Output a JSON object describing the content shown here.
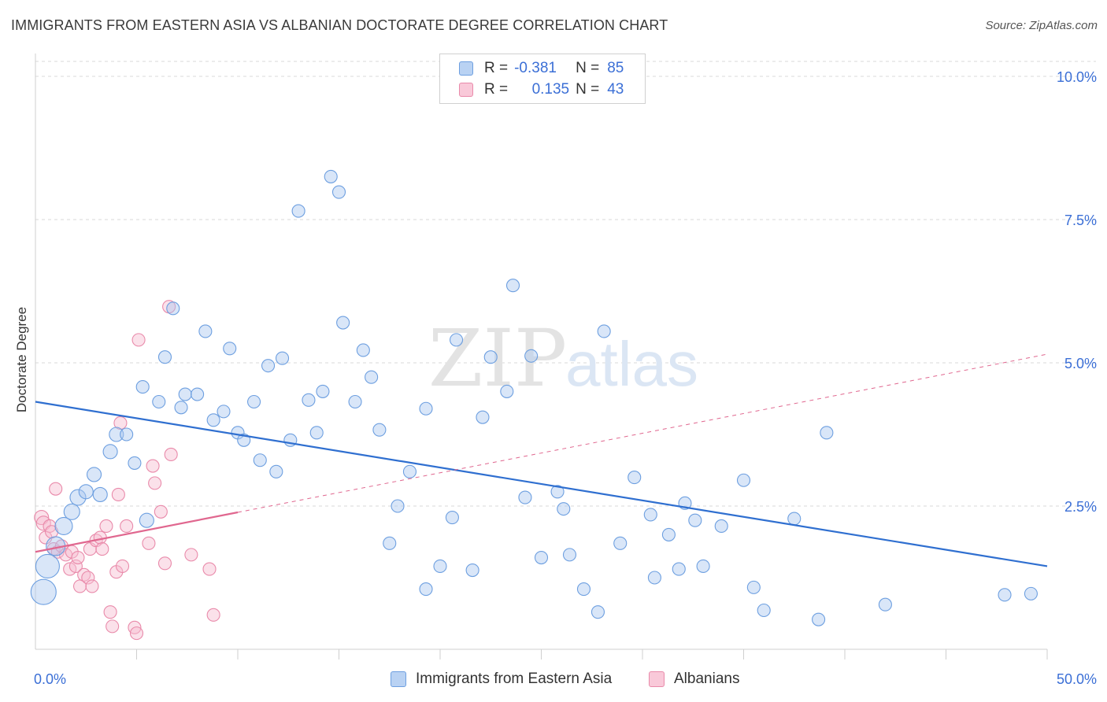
{
  "title": "IMMIGRANTS FROM EASTERN ASIA VS ALBANIAN DOCTORATE DEGREE CORRELATION CHART",
  "source": "Source: ZipAtlas.com",
  "watermark": {
    "zip": "ZIP",
    "atlas": "atlas"
  },
  "legend": {
    "r_label": "R =",
    "n_label": "N =",
    "rows": [
      {
        "r": "-0.381",
        "n": "85"
      },
      {
        "r": "0.135",
        "n": "43"
      }
    ]
  },
  "colors": {
    "blue_fill": "#aac8f0",
    "blue_stroke": "#6d9fe0",
    "blue_line": "#2f6fd0",
    "pink_fill": "#f7bcd0",
    "pink_stroke": "#e98aaa",
    "pink_line": "#e0678f",
    "tick_label": "#3b6fd6",
    "grid": "#d9d9d9"
  },
  "chart_data": {
    "type": "scatter",
    "title": "IMMIGRANTS FROM EASTERN ASIA VS ALBANIAN DOCTORATE DEGREE CORRELATION CHART",
    "xlabel": "",
    "ylabel": "Doctorate Degree",
    "xlim": [
      0,
      50
    ],
    "ylim": [
      0,
      10.5
    ],
    "x_tick_labels": [
      "0.0%",
      "50.0%"
    ],
    "y_ticks": [
      2.5,
      5.0,
      7.5,
      10.0
    ],
    "y_tick_labels": [
      "2.5%",
      "5.0%",
      "7.5%",
      "10.0%"
    ],
    "series": [
      {
        "name": "Immigrants from Eastern Asia",
        "r": -0.381,
        "n": 85,
        "trend": {
          "x": [
            0,
            50
          ],
          "y": [
            4.32,
            1.45
          ],
          "dashed_from": null
        },
        "points": [
          [
            0.4,
            1.0,
            16
          ],
          [
            0.6,
            1.45,
            15
          ],
          [
            1.0,
            1.8,
            12
          ],
          [
            1.4,
            2.15,
            11
          ],
          [
            1.8,
            2.4,
            10
          ],
          [
            2.1,
            2.65,
            10
          ],
          [
            2.5,
            2.75,
            9
          ],
          [
            2.9,
            3.05,
            9
          ],
          [
            3.2,
            2.7,
            9
          ],
          [
            3.7,
            3.45,
            9
          ],
          [
            4.0,
            3.75,
            9
          ],
          [
            4.5,
            3.75,
            8
          ],
          [
            4.9,
            3.25,
            8
          ],
          [
            5.3,
            4.58,
            8
          ],
          [
            5.5,
            2.25,
            9
          ],
          [
            6.1,
            4.32,
            8
          ],
          [
            6.4,
            5.1,
            8
          ],
          [
            6.8,
            5.95,
            8
          ],
          [
            7.2,
            4.22,
            8
          ],
          [
            7.4,
            4.45,
            8
          ],
          [
            8.0,
            4.45,
            8
          ],
          [
            8.4,
            5.55,
            8
          ],
          [
            8.8,
            4.0,
            8
          ],
          [
            9.3,
            4.15,
            8
          ],
          [
            9.6,
            5.25,
            8
          ],
          [
            10.0,
            3.78,
            8
          ],
          [
            10.3,
            3.65,
            8
          ],
          [
            10.8,
            4.32,
            8
          ],
          [
            11.1,
            3.3,
            8
          ],
          [
            11.5,
            4.95,
            8
          ],
          [
            11.9,
            3.1,
            8
          ],
          [
            12.2,
            5.08,
            8
          ],
          [
            12.6,
            3.65,
            8
          ],
          [
            13.0,
            7.65,
            8
          ],
          [
            13.5,
            4.35,
            8
          ],
          [
            13.9,
            3.78,
            8
          ],
          [
            14.2,
            4.5,
            8
          ],
          [
            14.6,
            8.25,
            8
          ],
          [
            15.0,
            7.98,
            8
          ],
          [
            15.2,
            5.7,
            8
          ],
          [
            15.8,
            4.32,
            8
          ],
          [
            16.2,
            5.22,
            8
          ],
          [
            16.6,
            4.75,
            8
          ],
          [
            17.0,
            3.83,
            8
          ],
          [
            17.5,
            1.85,
            8
          ],
          [
            17.9,
            2.5,
            8
          ],
          [
            18.5,
            3.1,
            8
          ],
          [
            19.3,
            1.05,
            8
          ],
          [
            19.3,
            4.2,
            8
          ],
          [
            20.0,
            1.45,
            8
          ],
          [
            20.6,
            2.3,
            8
          ],
          [
            20.8,
            5.4,
            8
          ],
          [
            21.6,
            1.38,
            8
          ],
          [
            22.1,
            4.05,
            8
          ],
          [
            22.5,
            5.1,
            8
          ],
          [
            23.3,
            4.5,
            8
          ],
          [
            23.6,
            6.35,
            8
          ],
          [
            24.2,
            2.65,
            8
          ],
          [
            24.5,
            5.12,
            8
          ],
          [
            25.0,
            1.6,
            8
          ],
          [
            25.8,
            2.75,
            8
          ],
          [
            26.1,
            2.45,
            8
          ],
          [
            26.4,
            1.65,
            8
          ],
          [
            27.1,
            1.05,
            8
          ],
          [
            27.8,
            0.65,
            8
          ],
          [
            28.1,
            5.55,
            8
          ],
          [
            28.9,
            1.85,
            8
          ],
          [
            29.6,
            3.0,
            8
          ],
          [
            30.4,
            2.35,
            8
          ],
          [
            30.6,
            1.25,
            8
          ],
          [
            31.3,
            2.0,
            8
          ],
          [
            31.8,
            1.4,
            8
          ],
          [
            32.1,
            2.55,
            8
          ],
          [
            32.6,
            2.25,
            8
          ],
          [
            33.0,
            1.45,
            8
          ],
          [
            33.9,
            2.15,
            8
          ],
          [
            35.0,
            2.95,
            8
          ],
          [
            35.5,
            1.08,
            8
          ],
          [
            36.0,
            0.68,
            8
          ],
          [
            37.5,
            2.28,
            8
          ],
          [
            38.7,
            0.52,
            8
          ],
          [
            39.1,
            3.78,
            8
          ],
          [
            42.0,
            0.78,
            8
          ],
          [
            47.9,
            0.95,
            8
          ],
          [
            49.2,
            0.97,
            8
          ]
        ]
      },
      {
        "name": "Albanians",
        "r": 0.135,
        "n": 43,
        "trend": {
          "x": [
            0,
            50
          ],
          "y": [
            1.7,
            5.15
          ],
          "solid_until": 10
        },
        "points": [
          [
            0.3,
            2.3,
            9
          ],
          [
            0.4,
            2.2,
            9
          ],
          [
            0.5,
            1.95,
            8
          ],
          [
            0.7,
            2.15,
            8
          ],
          [
            0.8,
            2.05,
            8
          ],
          [
            0.9,
            1.75,
            8
          ],
          [
            1.0,
            2.8,
            8
          ],
          [
            1.1,
            1.7,
            8
          ],
          [
            1.3,
            1.8,
            8
          ],
          [
            1.5,
            1.65,
            8
          ],
          [
            1.7,
            1.4,
            8
          ],
          [
            1.8,
            1.7,
            8
          ],
          [
            2.0,
            1.45,
            8
          ],
          [
            2.1,
            1.6,
            8
          ],
          [
            2.2,
            1.1,
            8
          ],
          [
            2.4,
            1.3,
            8
          ],
          [
            2.6,
            1.25,
            8
          ],
          [
            2.8,
            1.1,
            8
          ],
          [
            2.7,
            1.75,
            8
          ],
          [
            3.0,
            1.9,
            8
          ],
          [
            3.2,
            1.95,
            8
          ],
          [
            3.3,
            1.75,
            8
          ],
          [
            3.5,
            2.15,
            8
          ],
          [
            3.7,
            0.65,
            8
          ],
          [
            3.8,
            0.4,
            8
          ],
          [
            4.0,
            1.35,
            8
          ],
          [
            4.1,
            2.7,
            8
          ],
          [
            4.2,
            3.95,
            8
          ],
          [
            4.3,
            1.45,
            8
          ],
          [
            4.5,
            2.15,
            8
          ],
          [
            4.9,
            0.38,
            8
          ],
          [
            5.0,
            0.28,
            8
          ],
          [
            5.1,
            5.4,
            8
          ],
          [
            5.6,
            1.85,
            8
          ],
          [
            5.8,
            3.2,
            8
          ],
          [
            5.9,
            2.9,
            8
          ],
          [
            6.2,
            2.4,
            8
          ],
          [
            6.4,
            1.5,
            8
          ],
          [
            6.6,
            5.98,
            8
          ],
          [
            6.7,
            3.4,
            8
          ],
          [
            7.7,
            1.65,
            8
          ],
          [
            8.6,
            1.4,
            8
          ],
          [
            8.8,
            0.6,
            8
          ]
        ]
      }
    ]
  },
  "bottom_legend": [
    {
      "label": "Immigrants from Eastern Asia"
    },
    {
      "label": "Albanians"
    }
  ]
}
